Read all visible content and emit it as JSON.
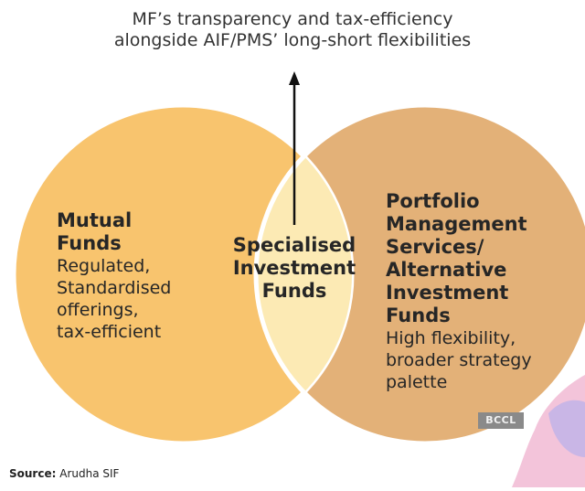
{
  "caption": {
    "line1": "MF’s transparency and tax-efficiency",
    "line2": "alongside AIF/PMS’ long-short flexibilities"
  },
  "left_circle": {
    "title_lines": [
      "Mutual",
      "Funds"
    ],
    "desc_lines": [
      "Regulated,",
      "Standardised",
      "offerings,",
      "tax-efficient"
    ]
  },
  "center": {
    "title_lines": [
      "Specialised",
      "Investment",
      "Funds"
    ]
  },
  "right_circle": {
    "title_lines": [
      "Portfolio",
      "Management",
      "Services/",
      "Alternative",
      "Investment",
      "Funds"
    ],
    "desc_lines": [
      "High flexibility,",
      "broader strategy",
      "palette"
    ]
  },
  "watermark": "BCCL",
  "source": {
    "label": "Source:",
    "value": "Arudha SIF"
  },
  "colors": {
    "left_fill": "#F8C46E",
    "right_fill": "#E3B178",
    "overlap_fill": "#FCEAB4",
    "outline": "#FFFFFF",
    "arrow": "#111111",
    "decor_pink": "#F3C4DA",
    "decor_lavender": "#C9B6E6"
  }
}
